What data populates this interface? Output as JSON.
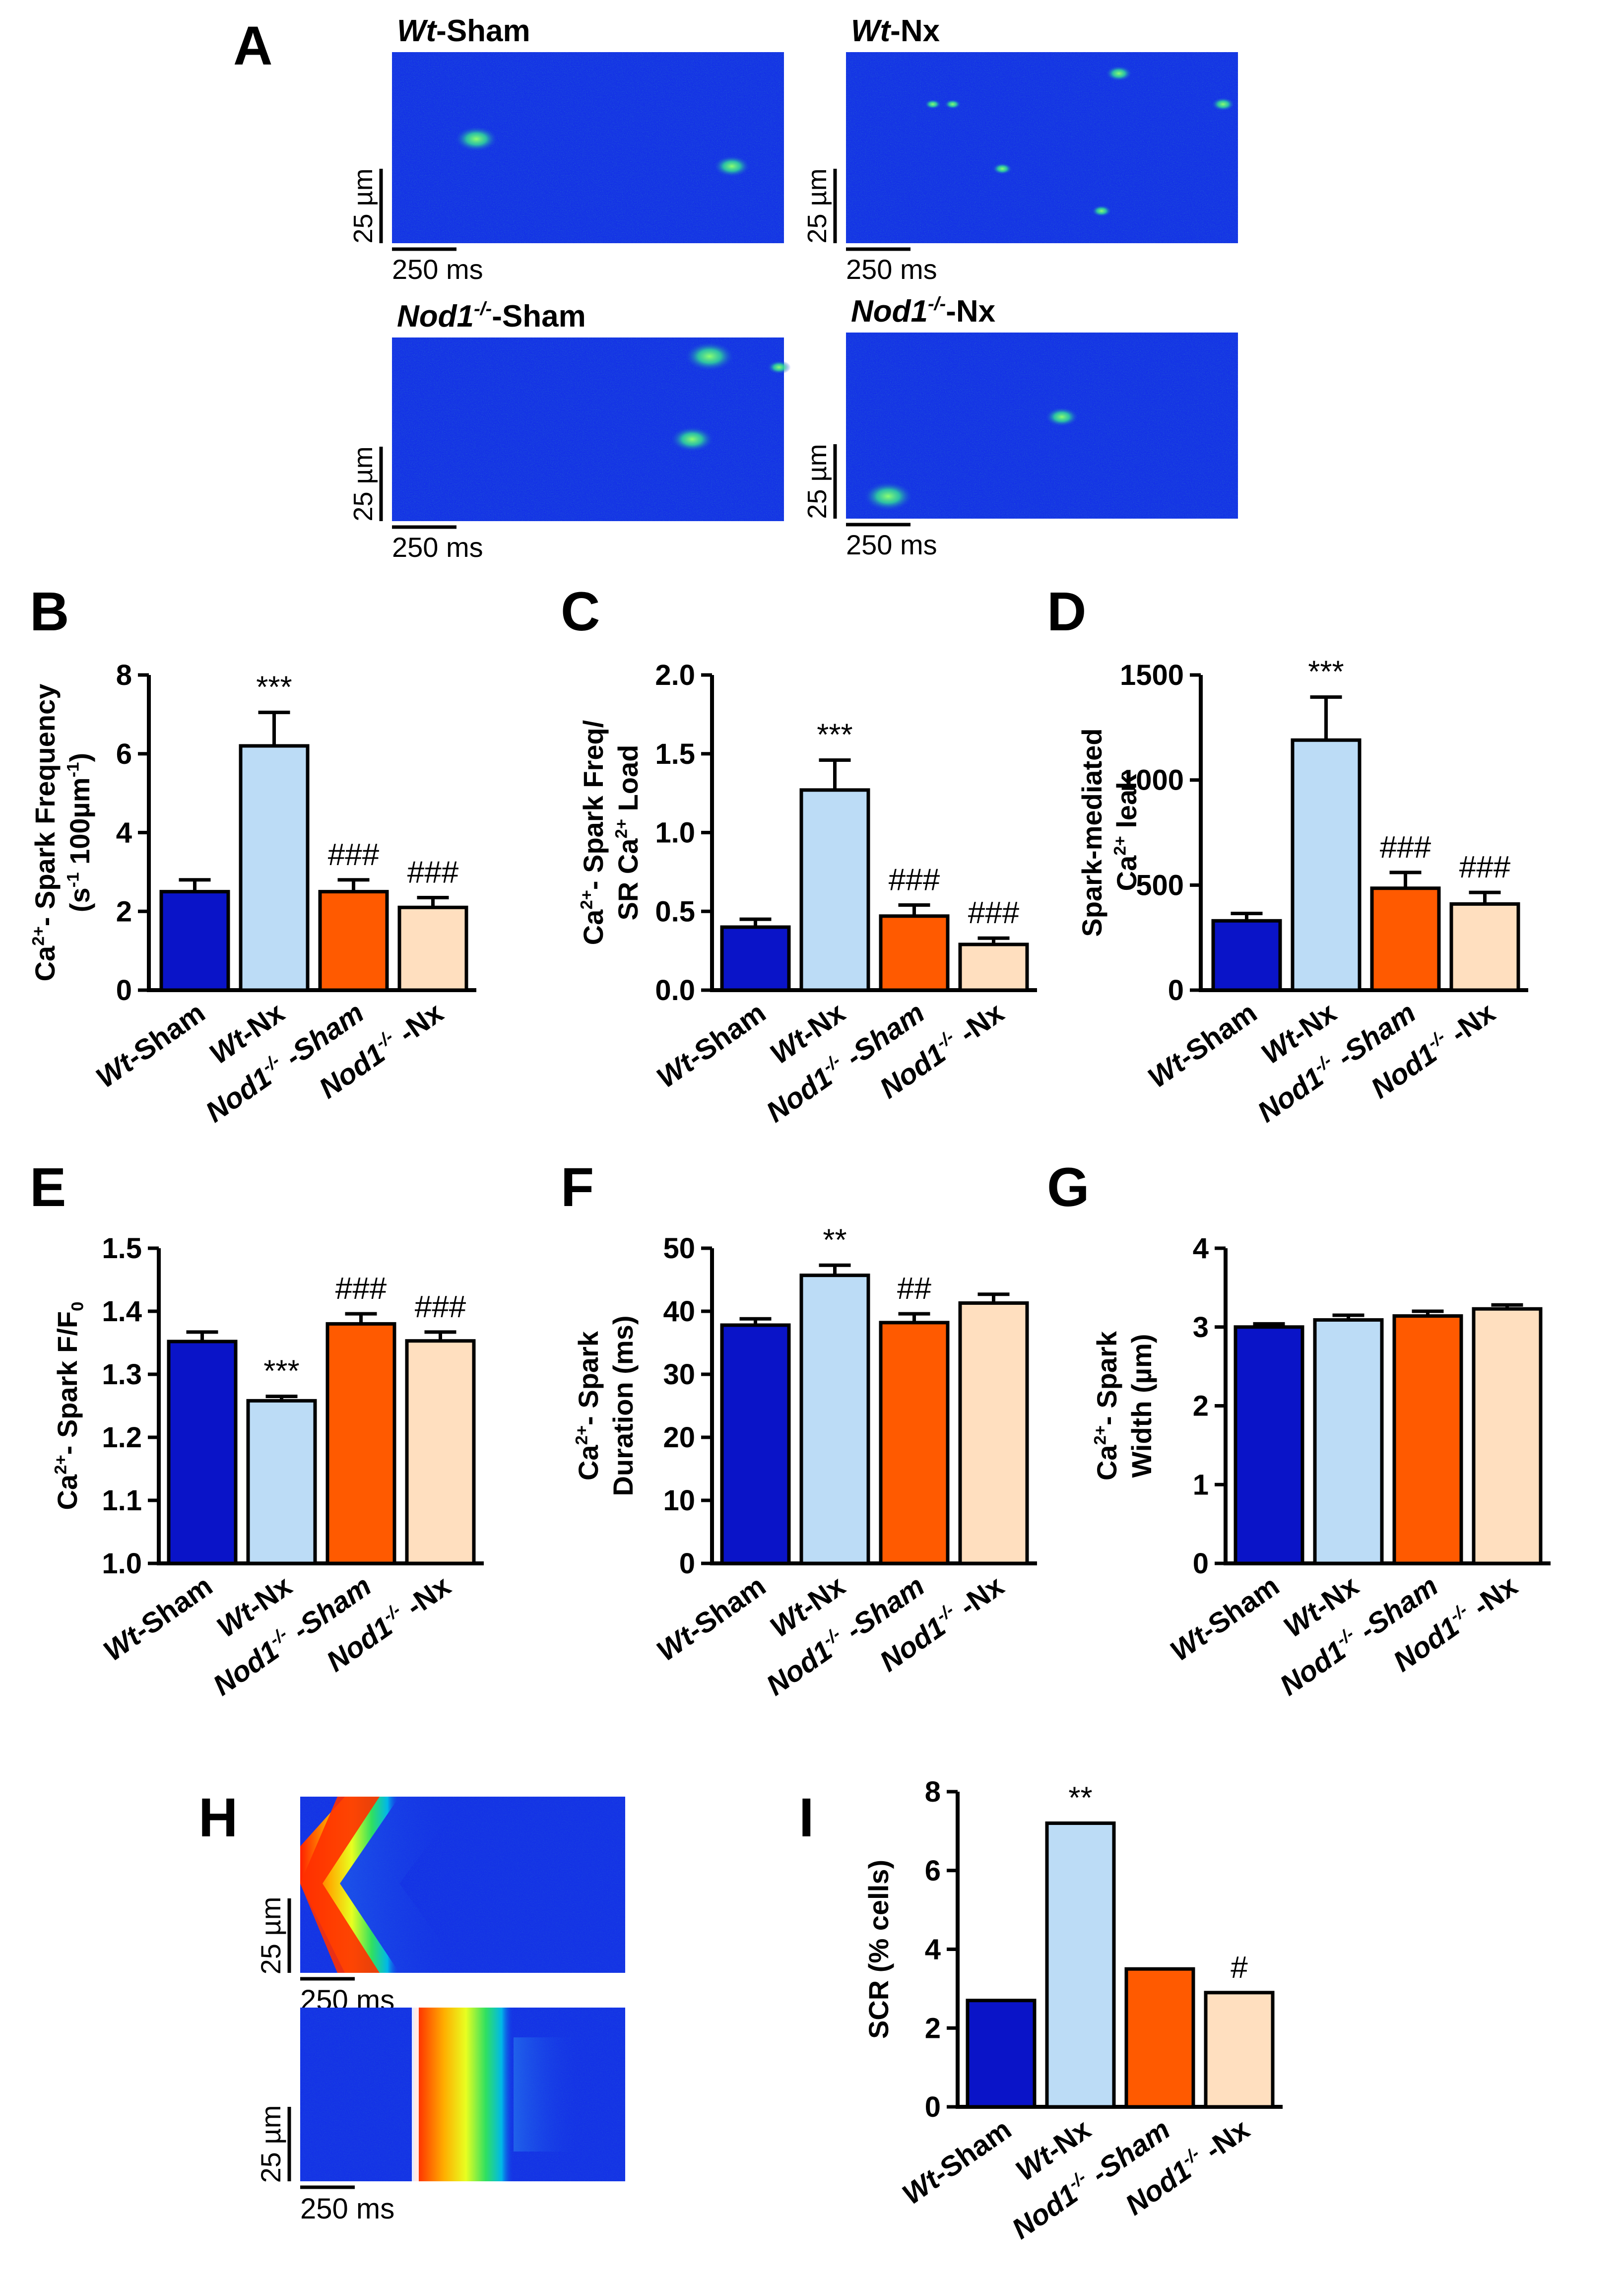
{
  "colors": {
    "wt_sham": "#0a14c8",
    "wt_nx": "#bcdcf6",
    "nod1_sham": "#ff5a00",
    "nod1_nx": "#ffdfbf",
    "axis": "#000000",
    "scan_bg": "#1432e6"
  },
  "panel_letters": [
    "A",
    "B",
    "C",
    "D",
    "E",
    "F",
    "G",
    "H",
    "I"
  ],
  "panel_a": {
    "images": [
      {
        "italic": "Wt",
        "sup": "",
        "rest": "-Sham"
      },
      {
        "italic": "Wt",
        "sup": "",
        "rest": "-Nx"
      },
      {
        "italic": "Nod1",
        "sup": "-/-",
        "rest": "-Sham"
      },
      {
        "italic": "Nod1",
        "sup": "-/-",
        "rest": "-Nx"
      }
    ],
    "scale_y": "25 µm",
    "scale_x": "250 ms"
  },
  "panel_h": {
    "scale_y": "25 µm",
    "scale_x": "250 ms"
  },
  "group_labels": [
    {
      "italic": "Wt",
      "sup": "",
      "rest": "-Sham"
    },
    {
      "italic": "Wt",
      "sup": "",
      "rest": "-Nx"
    },
    {
      "italic": "Nod1",
      "sup": "-/-",
      "rest": " -Sham"
    },
    {
      "italic": "Nod1",
      "sup": "-/-",
      "rest": " -Nx"
    }
  ],
  "chart_data": [
    {
      "panel": "B",
      "type": "bar",
      "categories": [
        "Wt-Sham",
        "Wt-Nx",
        "Nod1-/- -Sham",
        "Nod1-/- -Nx"
      ],
      "values": [
        2.5,
        6.2,
        2.5,
        2.1
      ],
      "errors": [
        0.3,
        0.85,
        0.3,
        0.25
      ],
      "annotations": [
        "",
        "***",
        "###",
        "###"
      ],
      "ylim": [
        0,
        8
      ],
      "yticks": [
        "0",
        "2",
        "4",
        "6",
        "8"
      ],
      "ylabel": [
        "Ca<sup>2+</sup>- Spark Frequency",
        "(s<sup>-1</sup> 100µm<sup>-1</sup>)"
      ]
    },
    {
      "panel": "C",
      "type": "bar",
      "categories": [
        "Wt-Sham",
        "Wt-Nx",
        "Nod1-/- -Sham",
        "Nod1-/- -Nx"
      ],
      "values": [
        0.4,
        1.27,
        0.47,
        0.29
      ],
      "errors": [
        0.05,
        0.19,
        0.07,
        0.04
      ],
      "annotations": [
        "",
        "***",
        "###",
        "###"
      ],
      "ylim": [
        0,
        2.0
      ],
      "yticks": [
        "0.0",
        "0.5",
        "1.0",
        "1.5",
        "2.0"
      ],
      "ylabel": [
        "Ca<sup>2+</sup>- Spark Freq/",
        "SR Ca<sup>2+</sup> Load"
      ]
    },
    {
      "panel": "D",
      "type": "bar",
      "categories": [
        "Wt-Sham",
        "Wt-Nx",
        "Nod1-/- -Sham",
        "Nod1-/- -Nx"
      ],
      "values": [
        330,
        1190,
        485,
        410
      ],
      "errors": [
        35,
        205,
        75,
        55
      ],
      "annotations": [
        "",
        "***",
        "###",
        "###"
      ],
      "ylim": [
        0,
        1500
      ],
      "yticks": [
        "0",
        "500",
        "1000",
        "1500"
      ],
      "ylabel": [
        "Spark-mediated",
        "Ca<sup>2+</sup> leak"
      ]
    },
    {
      "panel": "E",
      "type": "bar",
      "categories": [
        "Wt-Sham",
        "Wt-Nx",
        "Nod1-/- -Sham",
        "Nod1-/- -Nx"
      ],
      "values": [
        1.352,
        1.258,
        1.38,
        1.353
      ],
      "errors": [
        0.015,
        0.007,
        0.016,
        0.014
      ],
      "annotations": [
        "",
        "***",
        "###",
        "###"
      ],
      "ylim": [
        1.0,
        1.5
      ],
      "yticks": [
        "1.0",
        "1.1",
        "1.2",
        "1.3",
        "1.4",
        "1.5"
      ],
      "ylabel": [
        "Ca<sup>2+</sup>- Spark  F/F<sub>0</sub>"
      ]
    },
    {
      "panel": "F",
      "type": "bar",
      "categories": [
        "Wt-Sham",
        "Wt-Nx",
        "Nod1-/- -Sham",
        "Nod1-/- -Nx"
      ],
      "values": [
        37.8,
        45.7,
        38.2,
        41.3
      ],
      "errors": [
        1.0,
        1.6,
        1.4,
        1.4
      ],
      "annotations": [
        "",
        "**",
        "##",
        ""
      ],
      "ylim": [
        0,
        50
      ],
      "yticks": [
        "0",
        "10",
        "20",
        "30",
        "40",
        "50"
      ],
      "ylabel": [
        "Ca<sup>2+</sup>- Spark",
        "Duration (ms)"
      ]
    },
    {
      "panel": "G",
      "type": "bar",
      "categories": [
        "Wt-Sham",
        "Wt-Nx",
        "Nod1-/- -Sham",
        "Nod1-/- -Nx"
      ],
      "values": [
        3.0,
        3.09,
        3.14,
        3.23
      ],
      "errors": [
        0.04,
        0.06,
        0.06,
        0.05
      ],
      "annotations": [
        "",
        "",
        "",
        ""
      ],
      "ylim": [
        0,
        4
      ],
      "yticks": [
        "0",
        "1",
        "2",
        "3",
        "4"
      ],
      "ylabel": [
        "Ca<sup>2+</sup>- Spark",
        "Width (µm)"
      ]
    },
    {
      "panel": "I",
      "type": "bar",
      "categories": [
        "Wt-Sham",
        "Wt-Nx",
        "Nod1-/- -Sham",
        "Nod1-/- -Nx"
      ],
      "values": [
        2.7,
        7.2,
        3.5,
        2.9
      ],
      "errors": [
        0,
        0,
        0,
        0
      ],
      "annotations": [
        "",
        "**",
        "",
        "#"
      ],
      "ylim": [
        0,
        8
      ],
      "yticks": [
        "0",
        "2",
        "4",
        "6",
        "8"
      ],
      "ylabel": [
        "SCR (% cells)"
      ]
    }
  ]
}
